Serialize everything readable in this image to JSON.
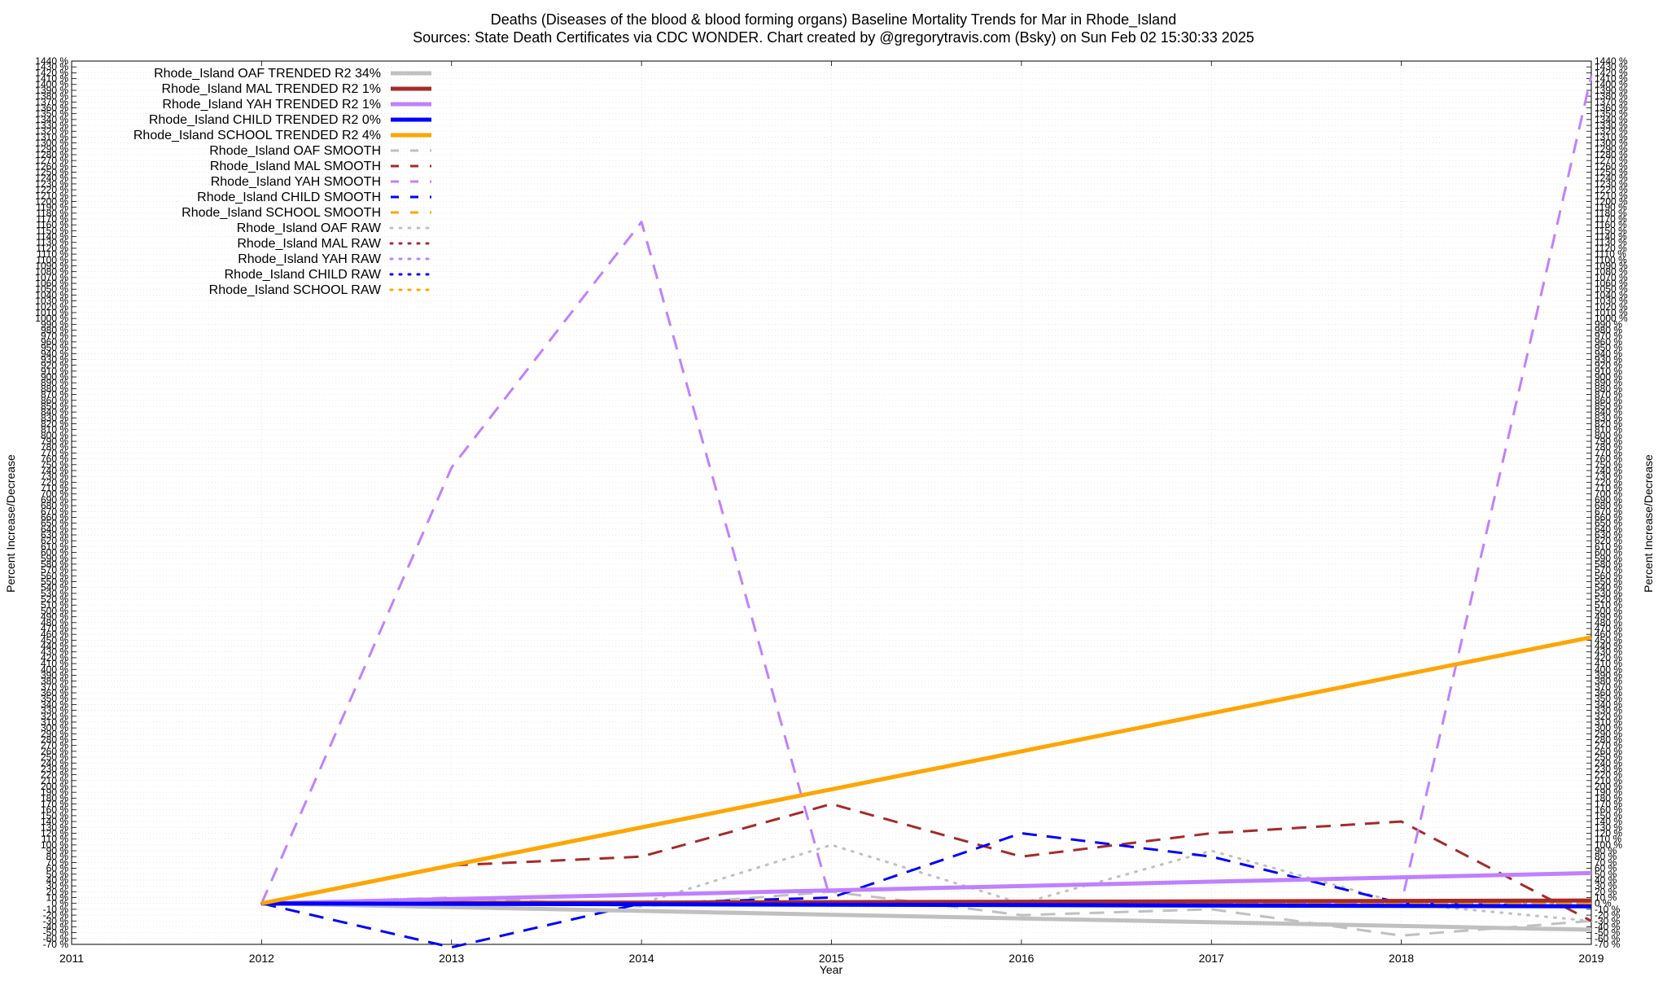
{
  "chart_data": {
    "type": "line",
    "title": "Deaths (Diseases of the blood & blood forming organs)  Baseline Mortality Trends for Mar in Rhode_Island",
    "subtitle": "Sources: State Death Certificates via CDC WONDER.               Chart created by @gregorytravis.com (Bsky) on Sun Feb 02 15:30:33 2025",
    "xlabel": "Year",
    "ylabel": "Percent Increase/Decrease",
    "y2label": "Percent Increase/Decrease",
    "xlim": [
      2011,
      2019
    ],
    "ylim": [
      -70,
      1440
    ],
    "x_ticks": [
      2011,
      2012,
      2013,
      2014,
      2015,
      2016,
      2017,
      2018,
      2019
    ],
    "y_tick_step": 10,
    "y_tick_suffix": " %",
    "grid": true,
    "legend_position": "top-left",
    "series": [
      {
        "name": "Rhode_Island OAF TRENDED R2  34%",
        "style": "solid-thick",
        "color": "#c0c0c0",
        "x": [
          2012,
          2019
        ],
        "y": [
          0,
          -45
        ]
      },
      {
        "name": "Rhode_Island MAL TRENDED R2   1%",
        "style": "solid-thick",
        "color": "#a52a2a",
        "x": [
          2012,
          2019
        ],
        "y": [
          0,
          5
        ]
      },
      {
        "name": "Rhode_Island YAH TRENDED R2   1%",
        "style": "solid-thick",
        "color": "#c080ff",
        "x": [
          2012,
          2019
        ],
        "y": [
          0,
          52
        ]
      },
      {
        "name": "Rhode_Island CHILD TRENDED R2   0%",
        "style": "solid-thick",
        "color": "#0000ff",
        "x": [
          2012,
          2019
        ],
        "y": [
          0,
          -5
        ]
      },
      {
        "name": "Rhode_Island SCHOOL TRENDED R2   4%",
        "style": "solid-thick",
        "color": "#ffa500",
        "x": [
          2012,
          2019
        ],
        "y": [
          0,
          455
        ]
      },
      {
        "name": "Rhode_Island OAF SMOOTH",
        "style": "dashed",
        "color": "#c0c0c0",
        "x": [
          2012,
          2013,
          2014,
          2015,
          2016,
          2017,
          2018,
          2019
        ],
        "y": [
          0,
          10,
          -5,
          20,
          -20,
          -10,
          -55,
          -30
        ]
      },
      {
        "name": "Rhode_Island MAL SMOOTH",
        "style": "dashed",
        "color": "#a52a2a",
        "x": [
          2012,
          2013,
          2014,
          2015,
          2016,
          2017,
          2018,
          2019
        ],
        "y": [
          0,
          65,
          80,
          170,
          80,
          120,
          140,
          -30
        ]
      },
      {
        "name": "Rhode_Island YAH SMOOTH",
        "style": "dashed",
        "color": "#c080ff",
        "x": [
          2012,
          2013,
          2014,
          2015,
          2016,
          2017,
          2018,
          2019
        ],
        "y": [
          0,
          745,
          1165,
          0,
          0,
          0,
          0,
          1415
        ]
      },
      {
        "name": "Rhode_Island CHILD SMOOTH",
        "style": "dashed",
        "color": "#0000ff",
        "x": [
          2012,
          2013,
          2014,
          2015,
          2016,
          2017,
          2018,
          2019
        ],
        "y": [
          0,
          -75,
          0,
          10,
          120,
          80,
          0,
          -5
        ]
      },
      {
        "name": "Rhode_Island SCHOOL SMOOTH",
        "style": "dashed",
        "color": "#ffa500",
        "x": [
          2012,
          2013,
          2014,
          2015,
          2016,
          2017,
          2018,
          2019
        ],
        "y": [
          0,
          0,
          0,
          0,
          0,
          0,
          0,
          0
        ]
      },
      {
        "name": "Rhode_Island OAF RAW",
        "style": "dotted",
        "color": "#c0c0c0",
        "x": [
          2012,
          2013,
          2014,
          2015,
          2016,
          2017,
          2018,
          2019
        ],
        "y": [
          0,
          0,
          0,
          100,
          0,
          90,
          0,
          -30
        ]
      },
      {
        "name": "Rhode_Island MAL RAW",
        "style": "dotted",
        "color": "#a52a2a",
        "x": [
          2012,
          2013,
          2014,
          2015,
          2016,
          2017,
          2018,
          2019
        ],
        "y": [
          0,
          0,
          0,
          0,
          0,
          0,
          0,
          0
        ]
      },
      {
        "name": "Rhode_Island YAH RAW",
        "style": "dotted",
        "color": "#c080ff",
        "x": [
          2012,
          2013,
          2014,
          2015,
          2016,
          2017,
          2018,
          2019
        ],
        "y": [
          0,
          0,
          0,
          0,
          0,
          0,
          0,
          0
        ]
      },
      {
        "name": "Rhode_Island CHILD RAW",
        "style": "dotted",
        "color": "#0000ff",
        "x": [
          2012,
          2013,
          2014,
          2015,
          2016,
          2017,
          2018,
          2019
        ],
        "y": [
          0,
          0,
          0,
          0,
          0,
          0,
          0,
          0
        ]
      },
      {
        "name": "Rhode_Island SCHOOL RAW",
        "style": "dotted",
        "color": "#ffa500",
        "x": [
          2012,
          2013,
          2014,
          2015,
          2016,
          2017,
          2018,
          2019
        ],
        "y": [
          0,
          0,
          0,
          0,
          0,
          0,
          0,
          0
        ]
      }
    ]
  }
}
